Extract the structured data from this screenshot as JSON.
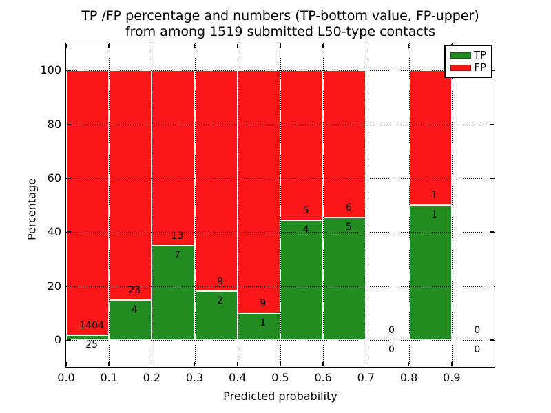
{
  "figure": {
    "title_line1": "TP /FP percentage and numbers (TP-bottom value, FP-upper)",
    "title_line2": "from among 1519 submitted L50-type contacts"
  },
  "chart_data": {
    "type": "bar",
    "stacked": true,
    "normalized_to_percent": true,
    "title": "TP /FP percentage and numbers (TP-bottom value, FP-upper)\nfrom among 1519 submitted L50-type contacts",
    "total_submitted": 1519,
    "xlabel": "Predicted probability",
    "ylabel": "Percentage",
    "xlim": [
      0.0,
      1.0
    ],
    "ylim": [
      -10,
      110
    ],
    "x_ticks": [
      "0.0",
      "0.1",
      "0.2",
      "0.3",
      "0.4",
      "0.5",
      "0.6",
      "0.7",
      "0.8",
      "0.9"
    ],
    "y_ticks": [
      0,
      20,
      40,
      60,
      80,
      100
    ],
    "grid": {
      "show": true,
      "style": "dotted",
      "color": "#000000"
    },
    "colors": {
      "tp": "#228b22",
      "fp": "#fb1717",
      "bar_edge": "#ffffff"
    },
    "legend": {
      "position": "upper right",
      "entries": [
        {
          "label": "TP",
          "color": "#228b22"
        },
        {
          "label": "FP",
          "color": "#fb1717"
        }
      ]
    },
    "bins": [
      {
        "x_start": 0.0,
        "x_end": 0.1,
        "tp_count": 25,
        "fp_count": 1404,
        "tp_percent": 1.75,
        "fp_percent": 98.25
      },
      {
        "x_start": 0.1,
        "x_end": 0.2,
        "tp_count": 4,
        "fp_count": 23,
        "tp_percent": 14.81,
        "fp_percent": 85.19
      },
      {
        "x_start": 0.2,
        "x_end": 0.3,
        "tp_count": 7,
        "fp_count": 13,
        "tp_percent": 35.0,
        "fp_percent": 65.0
      },
      {
        "x_start": 0.3,
        "x_end": 0.4,
        "tp_count": 2,
        "fp_count": 9,
        "tp_percent": 18.18,
        "fp_percent": 81.82
      },
      {
        "x_start": 0.4,
        "x_end": 0.5,
        "tp_count": 1,
        "fp_count": 9,
        "tp_percent": 10.0,
        "fp_percent": 90.0
      },
      {
        "x_start": 0.5,
        "x_end": 0.6,
        "tp_count": 4,
        "fp_count": 5,
        "tp_percent": 44.44,
        "fp_percent": 55.56
      },
      {
        "x_start": 0.6,
        "x_end": 0.7,
        "tp_count": 5,
        "fp_count": 6,
        "tp_percent": 45.45,
        "fp_percent": 54.55
      },
      {
        "x_start": 0.7,
        "x_end": 0.8,
        "tp_count": 0,
        "fp_count": 0,
        "tp_percent": 0,
        "fp_percent": 0
      },
      {
        "x_start": 0.8,
        "x_end": 0.9,
        "tp_count": 1,
        "fp_count": 1,
        "tp_percent": 50.0,
        "fp_percent": 50.0
      },
      {
        "x_start": 0.9,
        "x_end": 1.0,
        "tp_count": 0,
        "fp_count": 0,
        "tp_percent": 0,
        "fp_percent": 0
      }
    ]
  }
}
